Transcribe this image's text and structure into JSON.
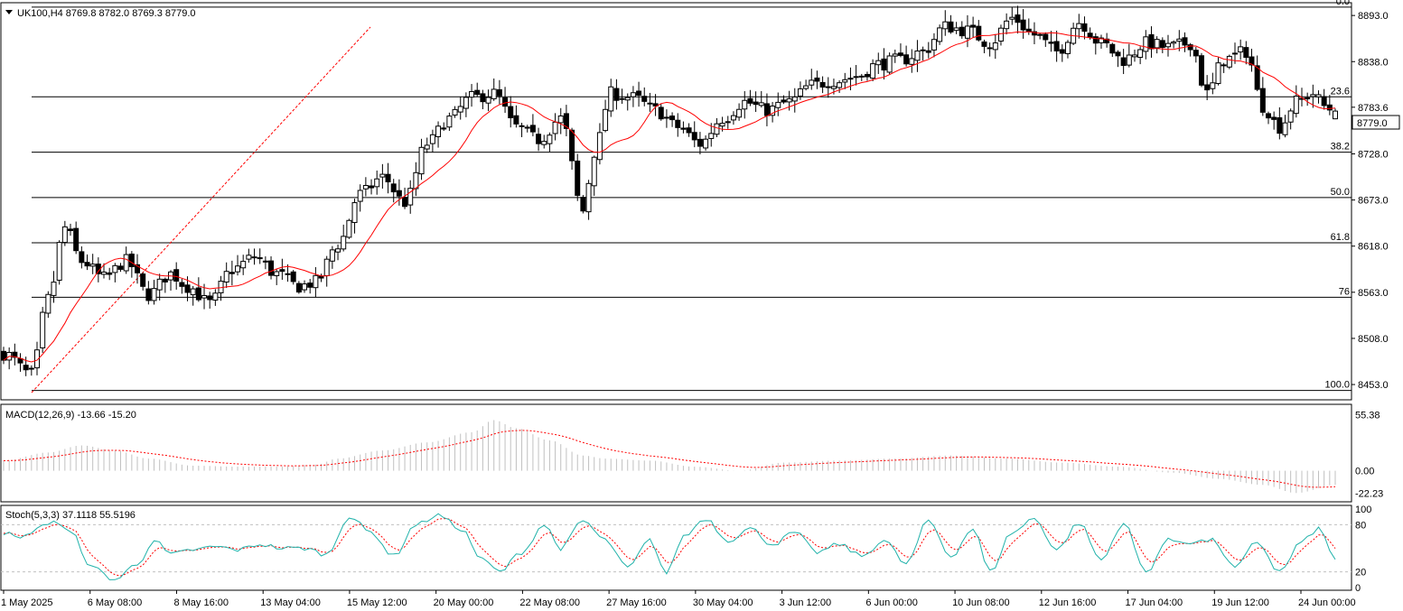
{
  "main": {
    "header": "UK100,H4  8769.8 8782.0 8769.3 8779.0",
    "price_label": "8779.0"
  },
  "macd": {
    "header": "MACD(12,26,9) -13.66 -15.20"
  },
  "stoch": {
    "header": "Stoch(5,3,3) 37.1118 55.5196"
  },
  "colors": {
    "candle_bull_fill": "#ffffff",
    "candle_bear_fill": "#000000",
    "moving_average": "#ff0000",
    "fib_diagonal": "#ff0000",
    "macd_histogram": "#c0c0c0",
    "macd_signal": "#ff0000",
    "stoch_main": "#20b2aa",
    "stoch_signal": "#ff0000",
    "levels": "#000000"
  },
  "chart_data": [
    {
      "type": "candlestick",
      "symbol": "UK100",
      "timeframe": "H4",
      "ohlc_last": {
        "open": 8769.8,
        "high": 8782.0,
        "low": 8769.3,
        "close": 8779.0
      },
      "y_ticks": [
        "8893.0",
        "8838.0",
        "8783.6",
        "8728.0",
        "8673.0",
        "8618.0",
        "8563.0",
        "8508.0",
        "8453.0"
      ],
      "y_tick_values": [
        8893.0,
        8838.0,
        8783.6,
        8728.0,
        8673.0,
        8618.0,
        8563.0,
        8508.0,
        8453.0
      ],
      "ylim": [
        8438,
        8905
      ],
      "fib_levels": [
        {
          "label": "0.0",
          "price": 8903
        },
        {
          "label": "23.6",
          "price": 8796
        },
        {
          "label": "38.2",
          "price": 8730
        },
        {
          "label": "50.0",
          "price": 8676
        },
        {
          "label": "61.8",
          "price": 8622
        },
        {
          "label": "76",
          "price": 8557
        },
        {
          "label": "100.0",
          "price": 8446
        }
      ],
      "x_labels": [
        "1 May 2025",
        "6 May 08:00",
        "8 May 16:00",
        "13 May 04:00",
        "15 May 12:00",
        "20 May 00:00",
        "22 May 08:00",
        "27 May 16:00",
        "30 May 04:00",
        "3 Jun 12:00",
        "6 Jun 00:00",
        "10 Jun 08:00",
        "12 Jun 16:00",
        "17 Jun 04:00",
        "19 Jun 12:00",
        "24 Jun 00:00"
      ],
      "close_waypoints": [
        [
          0,
          8490
        ],
        [
          5,
          8465
        ],
        [
          8,
          8555
        ],
        [
          11,
          8640
        ],
        [
          14,
          8600
        ],
        [
          18,
          8580
        ],
        [
          22,
          8600
        ],
        [
          26,
          8560
        ],
        [
          30,
          8585
        ],
        [
          33,
          8570
        ],
        [
          37,
          8550
        ],
        [
          41,
          8590
        ],
        [
          45,
          8605
        ],
        [
          49,
          8585
        ],
        [
          53,
          8570
        ],
        [
          56,
          8575
        ],
        [
          60,
          8620
        ],
        [
          64,
          8680
        ],
        [
          68,
          8700
        ],
        [
          72,
          8670
        ],
        [
          76,
          8740
        ],
        [
          80,
          8770
        ],
        [
          84,
          8795
        ],
        [
          88,
          8800
        ],
        [
          92,
          8760
        ],
        [
          96,
          8745
        ],
        [
          100,
          8770
        ],
        [
          104,
          8660
        ],
        [
          106,
          8730
        ],
        [
          109,
          8800
        ],
        [
          113,
          8795
        ],
        [
          117,
          8780
        ],
        [
          121,
          8760
        ],
        [
          125,
          8740
        ],
        [
          129,
          8770
        ],
        [
          133,
          8790
        ],
        [
          137,
          8780
        ],
        [
          141,
          8790
        ],
        [
          145,
          8810
        ],
        [
          149,
          8815
        ],
        [
          153,
          8820
        ],
        [
          157,
          8835
        ],
        [
          161,
          8840
        ],
        [
          165,
          8850
        ],
        [
          169,
          8880
        ],
        [
          173,
          8875
        ],
        [
          177,
          8860
        ],
        [
          181,
          8890
        ],
        [
          185,
          8870
        ],
        [
          189,
          8850
        ],
        [
          193,
          8885
        ],
        [
          197,
          8860
        ],
        [
          201,
          8840
        ],
        [
          205,
          8860
        ],
        [
          209,
          8855
        ],
        [
          213,
          8860
        ],
        [
          216,
          8800
        ],
        [
          219,
          8840
        ],
        [
          223,
          8850
        ],
        [
          226,
          8785
        ],
        [
          229,
          8760
        ],
        [
          232,
          8790
        ],
        [
          235,
          8800
        ],
        [
          237,
          8785
        ],
        [
          239,
          8779
        ]
      ],
      "candle_count": 240
    },
    {
      "type": "line",
      "name": "MACD(12,26,9)",
      "last_values": {
        "macd": -13.66,
        "signal": -15.2
      },
      "y_ticks": [
        "55.38",
        "0.00",
        "-22.23"
      ],
      "ylim": [
        -28,
        62
      ],
      "waypoints": [
        [
          0,
          10
        ],
        [
          8,
          18
        ],
        [
          14,
          25
        ],
        [
          20,
          20
        ],
        [
          26,
          12
        ],
        [
          34,
          5
        ],
        [
          42,
          4
        ],
        [
          50,
          4
        ],
        [
          56,
          6
        ],
        [
          60,
          12
        ],
        [
          68,
          20
        ],
        [
          76,
          28
        ],
        [
          84,
          38
        ],
        [
          88,
          50
        ],
        [
          92,
          42
        ],
        [
          98,
          30
        ],
        [
          104,
          15
        ],
        [
          108,
          12
        ],
        [
          116,
          10
        ],
        [
          124,
          4
        ],
        [
          132,
          0
        ],
        [
          140,
          8
        ],
        [
          150,
          10
        ],
        [
          160,
          12
        ],
        [
          170,
          15
        ],
        [
          180,
          12
        ],
        [
          190,
          8
        ],
        [
          200,
          4
        ],
        [
          210,
          -2
        ],
        [
          218,
          -8
        ],
        [
          226,
          -14
        ],
        [
          232,
          -22
        ],
        [
          239,
          -14
        ]
      ]
    },
    {
      "type": "line",
      "name": "Stoch(5,3,3)",
      "last_values": {
        "main": 37.1118,
        "signal": 55.5196
      },
      "y_ticks": [
        "100",
        "80",
        "20",
        "0"
      ],
      "levels": [
        80,
        20
      ],
      "ylim": [
        0,
        100
      ],
      "waypoints": [
        [
          0,
          70
        ],
        [
          3,
          62
        ],
        [
          6,
          75
        ],
        [
          9,
          85
        ],
        [
          12,
          70
        ],
        [
          16,
          25
        ],
        [
          20,
          10
        ],
        [
          24,
          30
        ],
        [
          27,
          60
        ],
        [
          30,
          42
        ],
        [
          34,
          48
        ],
        [
          38,
          52
        ],
        [
          42,
          48
        ],
        [
          46,
          55
        ],
        [
          50,
          50
        ],
        [
          54,
          50
        ],
        [
          58,
          42
        ],
        [
          62,
          90
        ],
        [
          66,
          70
        ],
        [
          70,
          40
        ],
        [
          74,
          80
        ],
        [
          78,
          92
        ],
        [
          82,
          75
        ],
        [
          86,
          35
        ],
        [
          89,
          20
        ],
        [
          93,
          45
        ],
        [
          97,
          80
        ],
        [
          100,
          50
        ],
        [
          104,
          85
        ],
        [
          108,
          60
        ],
        [
          112,
          25
        ],
        [
          116,
          60
        ],
        [
          119,
          18
        ],
        [
          122,
          65
        ],
        [
          126,
          88
        ],
        [
          130,
          60
        ],
        [
          134,
          75
        ],
        [
          138,
          55
        ],
        [
          142,
          70
        ],
        [
          146,
          45
        ],
        [
          150,
          55
        ],
        [
          154,
          40
        ],
        [
          158,
          60
        ],
        [
          162,
          30
        ],
        [
          166,
          85
        ],
        [
          170,
          40
        ],
        [
          174,
          75
        ],
        [
          177,
          20
        ],
        [
          181,
          70
        ],
        [
          185,
          88
        ],
        [
          189,
          48
        ],
        [
          193,
          82
        ],
        [
          197,
          35
        ],
        [
          201,
          82
        ],
        [
          205,
          20
        ],
        [
          209,
          60
        ],
        [
          213,
          58
        ],
        [
          217,
          60
        ],
        [
          221,
          25
        ],
        [
          225,
          58
        ],
        [
          229,
          20
        ],
        [
          233,
          58
        ],
        [
          236,
          75
        ],
        [
          239,
          37
        ]
      ]
    }
  ]
}
